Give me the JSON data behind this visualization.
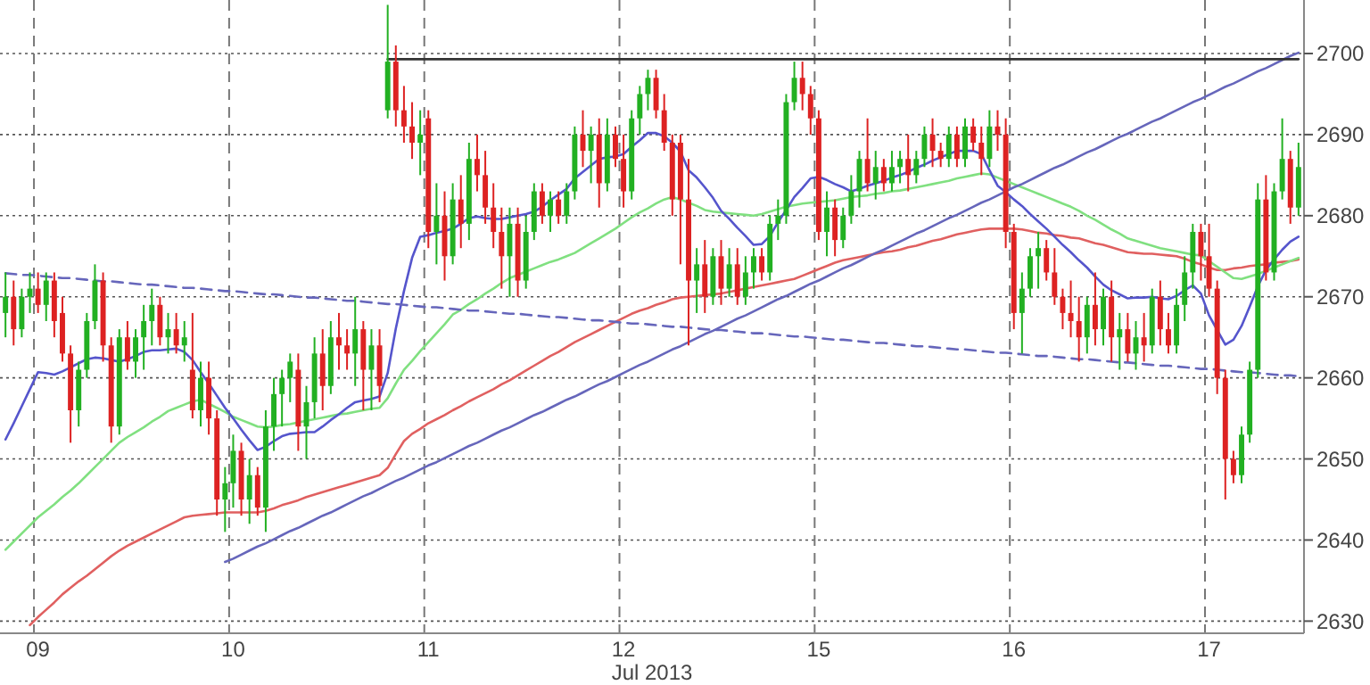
{
  "chart_data": {
    "type": "candlestick",
    "xlabel": "Jul 2013",
    "ylim": [
      2628.5,
      2706.6
    ],
    "categories": [
      null,
      null,
      null,
      null,
      "09",
      null,
      null,
      null,
      null,
      null,
      null,
      null,
      null,
      null,
      null,
      null,
      null,
      null,
      null,
      null,
      null,
      null,
      null,
      null,
      null,
      null,
      null,
      null,
      "10",
      null,
      null,
      null,
      null,
      null,
      null,
      null,
      null,
      null,
      null,
      null,
      null,
      null,
      null,
      null,
      null,
      null,
      null,
      null,
      null,
      null,
      null,
      null,
      "11",
      null,
      null,
      null,
      null,
      null,
      null,
      null,
      null,
      null,
      null,
      null,
      null,
      null,
      null,
      null,
      null,
      null,
      null,
      null,
      null,
      null,
      null,
      null,
      "12",
      null,
      null,
      null,
      null,
      null,
      null,
      null,
      null,
      null,
      null,
      null,
      null,
      null,
      null,
      null,
      null,
      null,
      null,
      null,
      null,
      null,
      null,
      null,
      "15",
      null,
      null,
      null,
      null,
      null,
      null,
      null,
      null,
      null,
      null,
      null,
      null,
      null,
      null,
      null,
      null,
      null,
      null,
      null,
      null,
      null,
      null,
      null,
      "16",
      null,
      null,
      null,
      null,
      null,
      null,
      null,
      null,
      null,
      null,
      null,
      null,
      null,
      null,
      null,
      null,
      null,
      null,
      null,
      null,
      null,
      null,
      null,
      "17",
      null,
      null,
      null,
      null,
      null,
      null,
      null,
      null,
      null,
      null,
      null
    ],
    "yticks": [
      2630,
      2640,
      2650,
      2660,
      2670,
      2680,
      2690,
      2700
    ],
    "grid": true,
    "series": [
      {
        "type": "line",
        "color": "#e06060",
        "line_style": "solid",
        "values": [
          null,
          null,
          null,
          2629.5,
          2630.5,
          2631.4,
          2632.3,
          2633.3,
          2634.1,
          2634.9,
          2635.6,
          2636.4,
          2637.2,
          2638,
          2638.7,
          2639.3,
          2639.8,
          2640.3,
          2640.8,
          2641.3,
          2641.8,
          2642.3,
          2642.8,
          2643,
          2643.1,
          2643.2,
          2643.3,
          2643.4,
          2643.4,
          2643.4,
          2643.4,
          2643.4,
          2643.6,
          2643.9,
          2644.3,
          2644.6,
          2644.9,
          2645.3,
          2645.6,
          2645.9,
          2646.2,
          2646.5,
          2646.8,
          2647.1,
          2647.4,
          2647.7,
          2648,
          2648.9,
          2650.6,
          2652.2,
          2653.1,
          2653.7,
          2654.4,
          2654.9,
          2655.4,
          2656,
          2656.5,
          2657.1,
          2657.6,
          2658.1,
          2658.6,
          2659.2,
          2659.7,
          2660.3,
          2660.9,
          2661.5,
          2662.1,
          2662.7,
          2663.2,
          2663.8,
          2664.4,
          2664.9,
          2665.4,
          2665.9,
          2666.4,
          2666.9,
          2667.4,
          2667.9,
          2668.3,
          2668.6,
          2669,
          2669.3,
          2669.7,
          2669.9,
          2670,
          2670.1,
          2670.2,
          2670.3,
          2670.4,
          2670.6,
          2670.8,
          2671,
          2671.2,
          2671.4,
          2671.6,
          2671.8,
          2672,
          2672.2,
          2672.6,
          2673,
          2673.4,
          2673.8,
          2674.2,
          2674.5,
          2674.7,
          2674.9,
          2675.1,
          2675.3,
          2675.5,
          2675.6,
          2675.8,
          2676.1,
          2676.3,
          2676.6,
          2676.9,
          2677.1,
          2677.4,
          2677.7,
          2677.9,
          2678.1,
          2678.3,
          2678.4,
          2678.4,
          2678.4,
          2678.4,
          2678.3,
          2678.1,
          2677.9,
          2677.8,
          2677.6,
          2677.5,
          2677.3,
          2677.2,
          2676.9,
          2676.6,
          2676.4,
          2676.1,
          2675.8,
          2675.5,
          2675.4,
          2675.3,
          2675.3,
          2675.2,
          2675.1,
          2675,
          2674.7,
          2674.3,
          2674,
          2673.6,
          2673.3,
          2673.3,
          2673.5,
          2673.6,
          2673.8,
          2673.9,
          2674,
          2674.2,
          2674.3,
          2674.4,
          2674.6
        ]
      },
      {
        "type": "line",
        "color": "#80e080",
        "line_style": "solid",
        "values": [
          2638.8,
          2639.8,
          2640.8,
          2641.8,
          2642.8,
          2643.6,
          2644.4,
          2645.3,
          2646.1,
          2647,
          2648,
          2649,
          2650,
          2651,
          2652,
          2652.7,
          2653.3,
          2653.9,
          2654.6,
          2655.2,
          2655.9,
          2656.3,
          2656.7,
          2657.1,
          2657.3,
          2656.8,
          2656.3,
          2655.8,
          2655.2,
          2654.8,
          2654.4,
          2654,
          2653.9,
          2654,
          2654.2,
          2654.3,
          2654.5,
          2654.7,
          2654.9,
          2655.1,
          2655.3,
          2655.5,
          2655.6,
          2655.8,
          2656,
          2656.2,
          2656.3,
          2657.5,
          2659.3,
          2661,
          2662.1,
          2663.3,
          2664.4,
          2665.5,
          2666.6,
          2667.8,
          2668.4,
          2669.1,
          2669.7,
          2670.4,
          2671,
          2671.7,
          2672.3,
          2672.7,
          2673.1,
          2673.5,
          2673.9,
          2674.3,
          2674.6,
          2675,
          2675.4,
          2676,
          2676.6,
          2677.2,
          2677.8,
          2678.4,
          2679.1,
          2679.8,
          2680.4,
          2680.9,
          2681.5,
          2682,
          2682.3,
          2682,
          2681.6,
          2681.2,
          2680.7,
          2680.5,
          2680.4,
          2680.3,
          2680.2,
          2680.1,
          2680,
          2680.2,
          2680.5,
          2680.8,
          2681.1,
          2681.3,
          2681.5,
          2681.6,
          2681.7,
          2681.8,
          2681.9,
          2682.1,
          2682.3,
          2682.4,
          2682.5,
          2682.7,
          2682.8,
          2683,
          2683.1,
          2683.3,
          2683.5,
          2683.7,
          2683.9,
          2684.1,
          2684.3,
          2684.6,
          2684.8,
          2685,
          2685.2,
          2685.1,
          2684.7,
          2684.3,
          2683.9,
          2683.5,
          2683.1,
          2682.7,
          2682.3,
          2681.9,
          2681.5,
          2681.1,
          2680.6,
          2680,
          2679.5,
          2678.9,
          2678.3,
          2677.8,
          2677.2,
          2676.9,
          2676.6,
          2676.3,
          2676,
          2675.8,
          2675.6,
          2675.4,
          2675.2,
          2675.1,
          2674.4,
          2673.7,
          2673,
          2672.3,
          2672.2,
          2672.5,
          2672.8,
          2673.2,
          2673.6,
          2674,
          2674.4,
          2674.8
        ]
      },
      {
        "type": "line",
        "color": "#5555cc",
        "line_style": "solid",
        "values": [
          2652.4,
          2654.4,
          2656.5,
          2658.6,
          2660.7,
          2660.6,
          2660.4,
          2660.8,
          2661.3,
          2661.8,
          2662.3,
          2662.5,
          2662.4,
          2662.2,
          2662,
          2662.3,
          2662.7,
          2663.2,
          2663.4,
          2663.4,
          2663.5,
          2663.6,
          2663.2,
          2662.2,
          2660.7,
          2659.3,
          2657.8,
          2656.3,
          2655,
          2653.6,
          2652.3,
          2651.1,
          2651.5,
          2652.2,
          2652.8,
          2653.1,
          2653.2,
          2653.3,
          2653.3,
          2654,
          2654.8,
          2655.5,
          2656.3,
          2657,
          2657.2,
          2657.4,
          2657.7,
          2660.6,
          2666.1,
          2670.7,
          2674.8,
          2677.4,
          2677.6,
          2677.9,
          2678.1,
          2678.4,
          2679,
          2679.7,
          2679.9,
          2679.7,
          2679.6,
          2679.6,
          2679.8,
          2680,
          2680.2,
          2680.5,
          2681.1,
          2681.9,
          2682.6,
          2683.3,
          2684.6,
          2685.4,
          2686.2,
          2687,
          2687.2,
          2687.3,
          2687.6,
          2688.5,
          2689.3,
          2690.2,
          2690.2,
          2689.8,
          2689,
          2687.9,
          2685.6,
          2684.7,
          2683.5,
          2682.2,
          2680.6,
          2679.6,
          2678.5,
          2677.5,
          2676.4,
          2676.5,
          2677.5,
          2679.2,
          2680.7,
          2682.3,
          2683.4,
          2684.6,
          2684.8,
          2684.4,
          2683.9,
          2683.5,
          2683,
          2683.3,
          2683.7,
          2684,
          2684.3,
          2684.7,
          2685,
          2685.4,
          2685.9,
          2686.3,
          2686.8,
          2687.2,
          2687.6,
          2688,
          2688,
          2688,
          2687.6,
          2685.6,
          2683.7,
          2682.9,
          2682,
          2681.2,
          2680.2,
          2679.3,
          2678.4,
          2677.4,
          2676.4,
          2675.5,
          2674.5,
          2673.6,
          2672.5,
          2671.5,
          2670.8,
          2670.3,
          2669.8,
          2669.9,
          2669.9,
          2670,
          2669.8,
          2669.7,
          2670.1,
          2670.8,
          2671.4,
          2670.4,
          2667.7,
          2665.9,
          2664.1,
          2664.7,
          2666.4,
          2668.8,
          2671.3,
          2673.3,
          2674.6,
          2675.8,
          2676.8,
          2677.4
        ]
      },
      {
        "type": "line",
        "color": "#6666bb",
        "line_style": "dashed",
        "values": [
          2672.9,
          2672.8,
          2672.7,
          2672.7,
          2672.6,
          2672.5,
          2672.4,
          2672.3,
          2672.3,
          2672.2,
          2672.1,
          2672.0,
          2671.9,
          2671.9,
          2671.8,
          2671.7,
          2671.6,
          2671.5,
          2671.5,
          2671.4,
          2671.3,
          2671.2,
          2671.1,
          2671.1,
          2671.0,
          2670.9,
          2670.8,
          2670.7,
          2670.7,
          2670.6,
          2670.5,
          2670.4,
          2670.3,
          2670.3,
          2670.2,
          2670.1,
          2670.0,
          2669.9,
          2669.9,
          2669.8,
          2669.7,
          2669.6,
          2669.5,
          2669.5,
          2669.4,
          2669.3,
          2669.2,
          2669.1,
          2669.1,
          2669.0,
          2668.9,
          2668.8,
          2668.7,
          2668.7,
          2668.6,
          2668.5,
          2668.4,
          2668.3,
          2668.3,
          2668.2,
          2668.1,
          2668.0,
          2667.9,
          2667.9,
          2667.8,
          2667.7,
          2667.6,
          2667.5,
          2667.5,
          2667.4,
          2667.3,
          2667.2,
          2667.1,
          2667.1,
          2667.0,
          2666.9,
          2666.8,
          2666.7,
          2666.7,
          2666.6,
          2666.5,
          2666.4,
          2666.3,
          2666.3,
          2666.2,
          2666.1,
          2666.0,
          2665.9,
          2665.9,
          2665.8,
          2665.7,
          2665.6,
          2665.5,
          2665.5,
          2665.4,
          2665.3,
          2665.2,
          2665.1,
          2665.1,
          2665.0,
          2664.9,
          2664.8,
          2664.7,
          2664.7,
          2664.6,
          2664.5,
          2664.4,
          2664.3,
          2664.3,
          2664.2,
          2664.1,
          2664.0,
          2663.9,
          2663.9,
          2663.8,
          2663.7,
          2663.6,
          2663.5,
          2663.5,
          2663.4,
          2663.3,
          2663.2,
          2663.1,
          2663.1,
          2663.0,
          2662.9,
          2662.8,
          2662.7,
          2662.7,
          2662.6,
          2662.5,
          2662.4,
          2662.3,
          2662.3,
          2662.2,
          2662.1,
          2662.0,
          2661.9,
          2661.9,
          2661.8,
          2661.7,
          2661.6,
          2661.5,
          2661.5,
          2661.4,
          2661.3,
          2661.2,
          2661.1,
          2661.1,
          2661.0,
          2660.9,
          2660.8,
          2660.7,
          2660.7,
          2660.6,
          2660.5,
          2660.4,
          2660.3,
          2660.3,
          2660.2
        ]
      },
      {
        "type": "line",
        "color": "#6666bb",
        "line_style": "solid",
        "values": [
          null,
          null,
          null,
          null,
          null,
          null,
          null,
          null,
          null,
          null,
          null,
          null,
          null,
          null,
          null,
          null,
          null,
          null,
          null,
          null,
          null,
          null,
          null,
          null,
          null,
          null,
          null,
          2637.3,
          2637.7,
          2638.2,
          2638.7,
          2639.2,
          2639.6,
          2640.1,
          2640.6,
          2641.1,
          2641.5,
          2642.0,
          2642.5,
          2643.0,
          2643.4,
          2643.9,
          2644.4,
          2644.9,
          2645.4,
          2645.8,
          2646.3,
          2646.8,
          2647.3,
          2647.7,
          2648.2,
          2648.7,
          2649.2,
          2649.6,
          2650.1,
          2650.6,
          2651.1,
          2651.6,
          2652.0,
          2652.5,
          2653.0,
          2653.5,
          2653.9,
          2654.4,
          2654.9,
          2655.4,
          2655.8,
          2656.3,
          2656.8,
          2657.3,
          2657.7,
          2658.2,
          2658.7,
          2659.2,
          2659.6,
          2660.1,
          2660.6,
          2661.1,
          2661.6,
          2662.0,
          2662.5,
          2663.0,
          2663.5,
          2663.9,
          2664.4,
          2664.9,
          2665.4,
          2665.8,
          2666.3,
          2666.8,
          2667.3,
          2667.7,
          2668.2,
          2668.7,
          2669.2,
          2669.7,
          2670.1,
          2670.6,
          2671.1,
          2671.6,
          2672.0,
          2672.5,
          2673.0,
          2673.5,
          2673.9,
          2674.4,
          2674.9,
          2675.4,
          2675.8,
          2676.3,
          2676.8,
          2677.3,
          2677.8,
          2678.2,
          2678.7,
          2679.2,
          2679.7,
          2680.1,
          2680.6,
          2681.1,
          2681.6,
          2682.0,
          2682.5,
          2683.0,
          2683.5,
          2683.9,
          2684.4,
          2684.9,
          2685.4,
          2685.9,
          2686.3,
          2686.8,
          2687.3,
          2687.8,
          2688.2,
          2688.7,
          2689.2,
          2689.7,
          2690.1,
          2690.6,
          2691.1,
          2691.6,
          2692.0,
          2692.5,
          2693.0,
          2693.5,
          2694.0,
          2694.4,
          2694.9,
          2695.4,
          2695.9,
          2696.3,
          2696.8,
          2697.3,
          2697.8,
          2698.2,
          2698.7,
          2699.2,
          2699.7,
          2700.1
        ]
      },
      {
        "type": "line",
        "color": "#333333",
        "line_style": "solid",
        "values": [
          null,
          null,
          null,
          null,
          null,
          null,
          null,
          null,
          null,
          null,
          null,
          null,
          null,
          null,
          null,
          null,
          null,
          null,
          null,
          null,
          null,
          null,
          null,
          null,
          null,
          null,
          null,
          null,
          null,
          null,
          null,
          null,
          null,
          null,
          null,
          null,
          null,
          null,
          null,
          null,
          null,
          null,
          null,
          null,
          null,
          null,
          null,
          2699.3,
          2699.3,
          2699.3,
          2699.3,
          2699.3,
          2699.3,
          2699.3,
          2699.3,
          2699.3,
          2699.3,
          2699.3,
          2699.3,
          2699.3,
          2699.3,
          2699.3,
          2699.3,
          2699.3,
          2699.3,
          2699.3,
          2699.3,
          2699.3,
          2699.3,
          2699.3,
          2699.3,
          2699.3,
          2699.3,
          2699.3,
          2699.3,
          2699.3,
          2699.3,
          2699.3,
          2699.3,
          2699.3,
          2699.3,
          2699.3,
          2699.3,
          2699.3,
          2699.3,
          2699.3,
          2699.3,
          2699.3,
          2699.3,
          2699.3,
          2699.3,
          2699.3,
          2699.3,
          2699.3,
          2699.3,
          2699.3,
          2699.3,
          2699.3,
          2699.3,
          2699.3,
          2699.3,
          2699.3,
          2699.3,
          2699.3,
          2699.3,
          2699.3,
          2699.3,
          2699.3,
          2699.3,
          2699.3,
          2699.3,
          2699.3,
          2699.3,
          2699.3,
          2699.3,
          2699.3,
          2699.3,
          2699.3,
          2699.3,
          2699.3,
          2699.3,
          2699.3,
          2699.3,
          2699.3,
          2699.3,
          2699.3,
          2699.3,
          2699.3,
          2699.3,
          2699.3,
          2699.3,
          2699.3,
          2699.3,
          2699.3,
          2699.3,
          2699.3,
          2699.3,
          2699.3,
          2699.3,
          2699.3,
          2699.3,
          2699.3,
          2699.3,
          2699.3,
          2699.3,
          2699.3,
          2699.3,
          2699.3,
          2699.3,
          2699.3,
          2699.3,
          2699.3,
          2699.3,
          2699.3,
          2699.3,
          2699.3,
          2699.3,
          2699.3,
          2699.3,
          2699.3
        ]
      },
      {
        "type": "candlestick",
        "ohlc": [
          [
            2668,
            2673,
            2665,
            2670
          ],
          [
            2670,
            2672,
            2664,
            2666
          ],
          [
            2666,
            2671,
            2665,
            2670
          ],
          [
            2670,
            2673,
            2668,
            2671
          ],
          [
            2671,
            2673,
            2668,
            2669
          ],
          [
            2669,
            2673,
            2667,
            2672
          ],
          [
            2672,
            2673,
            2665,
            2667
          ],
          [
            2668,
            2670,
            2662,
            2663
          ],
          [
            2663,
            2664,
            2652,
            2656
          ],
          [
            2656,
            2662,
            2654,
            2661
          ],
          [
            2661,
            2668,
            2660,
            2667
          ],
          [
            2667,
            2674,
            2666,
            2672
          ],
          [
            2672,
            2673,
            2662,
            2664
          ],
          [
            2664,
            2665,
            2652,
            2654
          ],
          [
            2654,
            2666,
            2653,
            2665
          ],
          [
            2665,
            2667,
            2661,
            2662
          ],
          [
            2662,
            2666,
            2660,
            2665
          ],
          [
            2665,
            2669,
            2661,
            2667
          ],
          [
            2667,
            2671,
            2664,
            2669
          ],
          [
            2669,
            2670,
            2664,
            2665
          ],
          [
            2665,
            2668,
            2663,
            2666
          ],
          [
            2666,
            2668,
            2663,
            2664
          ],
          [
            2664,
            2667,
            2662,
            2665
          ],
          [
            2661,
            2668,
            2655,
            2656
          ],
          [
            2656,
            2662,
            2654,
            2660
          ],
          [
            2660,
            2662,
            2653,
            2655
          ],
          [
            2655,
            2656,
            2643,
            2645
          ],
          [
            2645,
            2649,
            2641,
            2647
          ],
          [
            2647,
            2653,
            2644,
            2651
          ],
          [
            2651,
            2652,
            2643,
            2645
          ],
          [
            2645,
            2650,
            2642,
            2648
          ],
          [
            2648,
            2649,
            2643,
            2644
          ],
          [
            2644,
            2656,
            2641,
            2654
          ],
          [
            2654,
            2660,
            2651,
            2658
          ],
          [
            2658,
            2661,
            2654,
            2660
          ],
          [
            2660,
            2663,
            2657,
            2662
          ],
          [
            2661,
            2663,
            2651,
            2654
          ],
          [
            2654,
            2659,
            2650,
            2657
          ],
          [
            2657,
            2665,
            2655,
            2663
          ],
          [
            2663,
            2666,
            2656,
            2659
          ],
          [
            2659,
            2667,
            2658,
            2665
          ],
          [
            2665,
            2668,
            2661,
            2664
          ],
          [
            2664,
            2666,
            2661,
            2663
          ],
          [
            2663,
            2670,
            2659,
            2666
          ],
          [
            2666,
            2667,
            2656,
            2661
          ],
          [
            2661,
            2666,
            2656,
            2664
          ],
          [
            2664,
            2666,
            2657,
            2659
          ],
          [
            2693,
            2706,
            2692,
            2699
          ],
          [
            2699,
            2701,
            2691,
            2693
          ],
          [
            2693,
            2696,
            2689,
            2691
          ],
          [
            2691,
            2694,
            2687,
            2689
          ],
          [
            2689,
            2693,
            2685,
            2690
          ],
          [
            2692,
            2693,
            2676,
            2678
          ],
          [
            2678,
            2684,
            2674,
            2680
          ],
          [
            2680,
            2683,
            2672,
            2675
          ],
          [
            2675,
            2684,
            2674,
            2682
          ],
          [
            2682,
            2685,
            2676,
            2679
          ],
          [
            2679,
            2689,
            2677,
            2687
          ],
          [
            2687,
            2690,
            2683,
            2685
          ],
          [
            2685,
            2688,
            2679,
            2681
          ],
          [
            2681,
            2684,
            2676,
            2678
          ],
          [
            2678,
            2681,
            2671,
            2675
          ],
          [
            2675,
            2681,
            2670,
            2679
          ],
          [
            2679,
            2681,
            2670,
            2672
          ],
          [
            2672,
            2680,
            2671,
            2678
          ],
          [
            2678,
            2684,
            2677,
            2683
          ],
          [
            2683,
            2684,
            2679,
            2680
          ],
          [
            2680,
            2683,
            2678,
            2682
          ],
          [
            2682,
            2683,
            2679,
            2680
          ],
          [
            2680,
            2684,
            2679,
            2683
          ],
          [
            2683,
            2691,
            2682,
            2690
          ],
          [
            2690,
            2693,
            2686,
            2688
          ],
          [
            2688,
            2691,
            2684,
            2690
          ],
          [
            2690,
            2692,
            2681,
            2684
          ],
          [
            2684,
            2692,
            2683,
            2690
          ],
          [
            2690,
            2691,
            2686,
            2687
          ],
          [
            2687,
            2690,
            2681,
            2683
          ],
          [
            2683,
            2693,
            2682,
            2692
          ],
          [
            2692,
            2696,
            2690,
            2695
          ],
          [
            2695,
            2698,
            2693,
            2697
          ],
          [
            2697,
            2698,
            2692,
            2693
          ],
          [
            2693,
            2695,
            2688,
            2689
          ],
          [
            2689,
            2690,
            2680,
            2682
          ],
          [
            2689,
            2690,
            2674,
            2682
          ],
          [
            2682,
            2687,
            2664,
            2672
          ],
          [
            2672,
            2676,
            2668,
            2674
          ],
          [
            2674,
            2677,
            2668,
            2670
          ],
          [
            2670,
            2676,
            2669,
            2675
          ],
          [
            2675,
            2677,
            2669,
            2671
          ],
          [
            2671,
            2676,
            2670,
            2674
          ],
          [
            2674,
            2676,
            2669,
            2670
          ],
          [
            2670,
            2675,
            2669,
            2673
          ],
          [
            2673,
            2676,
            2671,
            2675
          ],
          [
            2675,
            2676,
            2672,
            2673
          ],
          [
            2673,
            2680,
            2672,
            2679
          ],
          [
            2679,
            2682,
            2677,
            2680
          ],
          [
            2680,
            2695,
            2679,
            2694
          ],
          [
            2694,
            2699,
            2693,
            2697
          ],
          [
            2697,
            2699,
            2693,
            2695
          ],
          [
            2695,
            2696,
            2690,
            2692
          ],
          [
            2692,
            2693,
            2677,
            2678
          ],
          [
            2678,
            2683,
            2675,
            2681
          ],
          [
            2681,
            2682,
            2675,
            2677
          ],
          [
            2677,
            2681,
            2676,
            2680
          ],
          [
            2680,
            2685,
            2679,
            2683
          ],
          [
            2683,
            2688,
            2681,
            2687
          ],
          [
            2687,
            2692,
            2683,
            2684
          ],
          [
            2684,
            2688,
            2682,
            2686
          ],
          [
            2686,
            2687,
            2683,
            2684
          ],
          [
            2684,
            2688,
            2683,
            2686
          ],
          [
            2686,
            2688,
            2684,
            2687
          ],
          [
            2687,
            2690,
            2683,
            2685
          ],
          [
            2685,
            2688,
            2684,
            2687
          ],
          [
            2687,
            2691,
            2686,
            2690
          ],
          [
            2690,
            2692,
            2686,
            2688
          ],
          [
            2688,
            2689,
            2686,
            2687
          ],
          [
            2687,
            2691,
            2686,
            2690
          ],
          [
            2690,
            2691,
            2686,
            2687
          ],
          [
            2687,
            2692,
            2686,
            2691
          ],
          [
            2691,
            2692,
            2688,
            2689
          ],
          [
            2689,
            2691,
            2685,
            2687
          ],
          [
            2687,
            2693,
            2686,
            2691
          ],
          [
            2691,
            2693,
            2688,
            2690
          ],
          [
            2690,
            2692,
            2676,
            2678
          ],
          [
            2678,
            2679,
            2666,
            2668
          ],
          [
            2668,
            2673,
            2663,
            2671
          ],
          [
            2671,
            2676,
            2670,
            2675
          ],
          [
            2675,
            2678,
            2671,
            2676
          ],
          [
            2676,
            2677,
            2672,
            2673
          ],
          [
            2673,
            2676,
            2669,
            2670
          ],
          [
            2670,
            2671,
            2666,
            2668
          ],
          [
            2668,
            2672,
            2665,
            2667
          ],
          [
            2667,
            2670,
            2662,
            2665
          ],
          [
            2665,
            2670,
            2663,
            2669
          ],
          [
            2669,
            2673,
            2664,
            2666
          ],
          [
            2666,
            2671,
            2664,
            2670
          ],
          [
            2670,
            2672,
            2662,
            2665
          ],
          [
            2665,
            2668,
            2661,
            2666
          ],
          [
            2666,
            2668,
            2662,
            2663
          ],
          [
            2663,
            2667,
            2661,
            2665
          ],
          [
            2665,
            2668,
            2662,
            2664
          ],
          [
            2664,
            2671,
            2663,
            2670
          ],
          [
            2670,
            2672,
            2664,
            2666
          ],
          [
            2666,
            2668,
            2663,
            2664
          ],
          [
            2664,
            2671,
            2663,
            2669
          ],
          [
            2669,
            2675,
            2667,
            2673
          ],
          [
            2673,
            2679,
            2671,
            2678
          ],
          [
            2678,
            2679,
            2672,
            2675
          ],
          [
            2675,
            2679,
            2670,
            2671
          ],
          [
            2671,
            2672,
            2658,
            2660
          ],
          [
            2660,
            2661,
            2645,
            2650
          ],
          [
            2650,
            2651,
            2647,
            2648
          ],
          [
            2648,
            2654,
            2647,
            2653
          ],
          [
            2653,
            2662,
            2652,
            2661
          ],
          [
            2661,
            2684,
            2660,
            2682
          ],
          [
            2682,
            2685,
            2672,
            2673
          ],
          [
            2673,
            2684,
            2672,
            2683
          ],
          [
            2683,
            2692,
            2682,
            2687
          ],
          [
            2687,
            2688,
            2679,
            2681
          ],
          [
            2681,
            2689,
            2680,
            2686
          ]
        ]
      }
    ]
  }
}
